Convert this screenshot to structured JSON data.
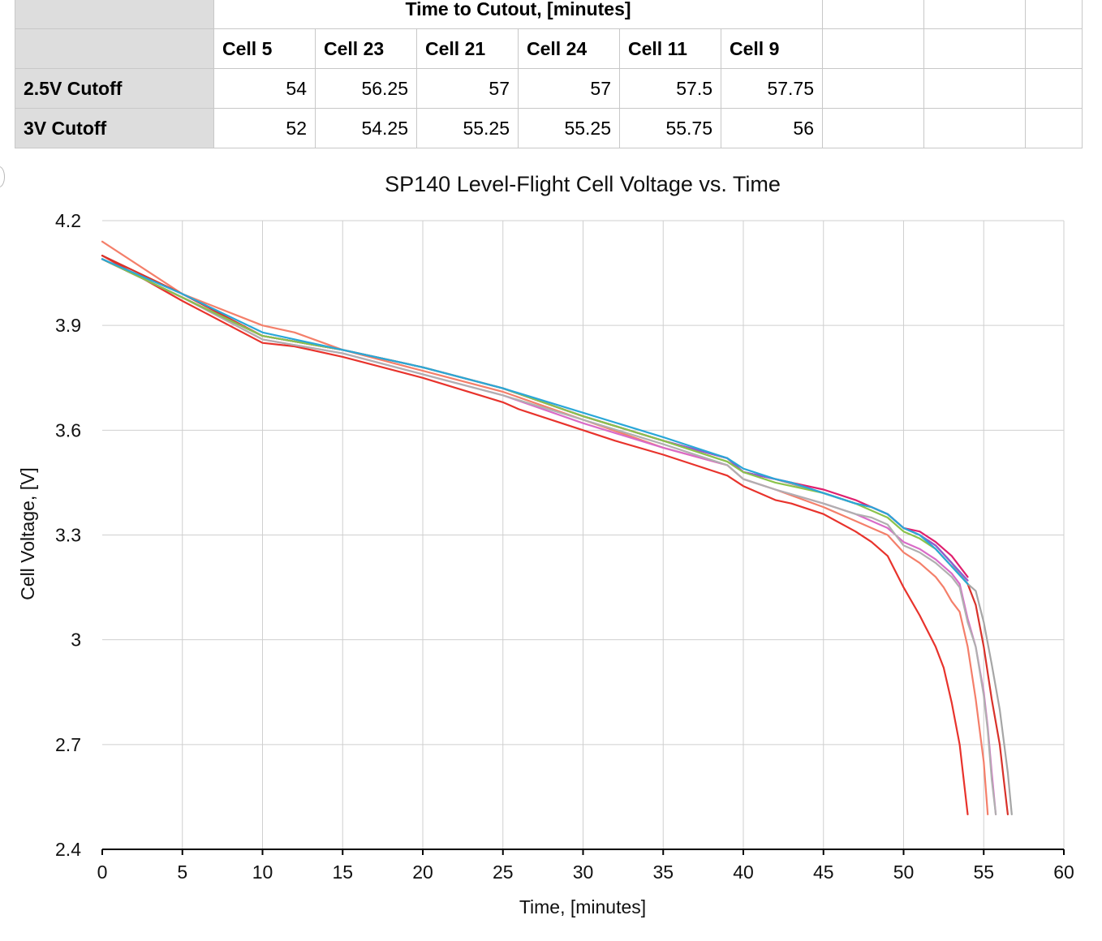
{
  "table": {
    "title": "Time to Cutout, [minutes]",
    "columns": [
      "Cell 5",
      "Cell 23",
      "Cell 21",
      "Cell 24",
      "Cell 11",
      "Cell 9"
    ],
    "rows": [
      {
        "label": "2.5V Cutoff",
        "values": [
          "54",
          "56.25",
          "57",
          "57",
          "57.5",
          "57.75"
        ]
      },
      {
        "label": "3V Cutoff",
        "values": [
          "52",
          "54.25",
          "55.25",
          "55.25",
          "55.75",
          "56"
        ]
      }
    ]
  },
  "chart_data": {
    "type": "line",
    "title": "SP140 Level-Flight Cell Voltage vs. Time",
    "xlabel": "Time, [minutes]",
    "ylabel": "Cell Voltage, [V]",
    "xlim": [
      0,
      60
    ],
    "ylim": [
      2.4,
      4.2
    ],
    "xticks": [
      0,
      5,
      10,
      15,
      20,
      25,
      30,
      35,
      40,
      45,
      50,
      55,
      60
    ],
    "yticks": [
      2.4,
      2.7,
      3.0,
      3.3,
      3.6,
      3.9,
      4.2
    ],
    "ytick_labels": [
      "2.4",
      "2.7",
      "3",
      "3.3",
      "3.6",
      "3.9",
      "4.2"
    ],
    "grid": true,
    "series": [
      {
        "color": "#e8332c",
        "x": [
          0,
          5,
          10,
          12,
          15,
          20,
          25,
          26,
          30,
          32,
          35,
          39,
          40,
          42,
          43,
          45,
          47,
          48,
          49,
          50,
          51,
          52,
          52.5,
          53,
          53.5,
          54
        ],
        "y": [
          4.1,
          3.97,
          3.85,
          3.84,
          3.81,
          3.75,
          3.68,
          3.66,
          3.6,
          3.57,
          3.53,
          3.47,
          3.44,
          3.4,
          3.39,
          3.36,
          3.31,
          3.28,
          3.24,
          3.15,
          3.07,
          2.98,
          2.92,
          2.82,
          2.7,
          2.5
        ]
      },
      {
        "color": "#f47f6a",
        "x": [
          0,
          5,
          10,
          12,
          15,
          20,
          25,
          30,
          35,
          39,
          40,
          42,
          45,
          47,
          48,
          49,
          50,
          51,
          52,
          52.5,
          53,
          53.5,
          54,
          54.5,
          55,
          55.25
        ],
        "y": [
          4.14,
          3.99,
          3.9,
          3.88,
          3.83,
          3.77,
          3.71,
          3.63,
          3.55,
          3.5,
          3.46,
          3.43,
          3.38,
          3.34,
          3.32,
          3.3,
          3.25,
          3.22,
          3.18,
          3.15,
          3.11,
          3.08,
          2.98,
          2.83,
          2.65,
          2.5
        ]
      },
      {
        "color": "#d96bc8",
        "x": [
          0,
          5,
          10,
          15,
          20,
          25,
          30,
          35,
          39,
          40,
          42,
          45,
          47,
          48,
          49,
          50,
          51,
          52,
          53,
          53.5,
          54,
          54.5,
          55,
          55.25,
          55.5,
          55.75
        ],
        "y": [
          4.09,
          3.98,
          3.86,
          3.82,
          3.76,
          3.7,
          3.62,
          3.55,
          3.5,
          3.46,
          3.43,
          3.39,
          3.36,
          3.34,
          3.32,
          3.28,
          3.26,
          3.23,
          3.19,
          3.16,
          3.06,
          2.98,
          2.85,
          2.75,
          2.62,
          2.5
        ]
      },
      {
        "color": "#b0b0b0",
        "x": [
          0,
          5,
          10,
          15,
          20,
          25,
          30,
          35,
          39,
          40,
          42,
          45,
          47,
          48,
          49,
          50,
          51,
          52,
          53,
          53.5,
          54,
          54.5,
          55,
          55.25,
          55.5,
          55.75
        ],
        "y": [
          4.09,
          3.98,
          3.86,
          3.82,
          3.76,
          3.7,
          3.63,
          3.56,
          3.5,
          3.46,
          3.43,
          3.39,
          3.36,
          3.35,
          3.33,
          3.27,
          3.25,
          3.22,
          3.18,
          3.15,
          3.05,
          2.98,
          2.84,
          2.74,
          2.6,
          2.5
        ]
      },
      {
        "color": "#d8322a",
        "x": [
          0,
          5,
          10,
          15,
          20,
          25,
          30,
          35,
          39,
          40,
          42,
          45,
          47,
          48,
          49,
          50,
          51,
          52,
          53,
          54,
          54.5,
          55,
          55.5,
          56,
          56.25,
          56.5
        ],
        "y": [
          4.1,
          3.99,
          3.87,
          3.83,
          3.78,
          3.72,
          3.64,
          3.57,
          3.52,
          3.48,
          3.46,
          3.42,
          3.39,
          3.38,
          3.36,
          3.32,
          3.3,
          3.27,
          3.22,
          3.16,
          3.1,
          2.98,
          2.83,
          2.7,
          2.6,
          2.5
        ]
      },
      {
        "color": "#a6a6a6",
        "x": [
          0,
          5,
          10,
          15,
          20,
          25,
          30,
          35,
          39,
          40,
          42,
          45,
          47,
          48,
          49,
          50,
          51,
          52,
          53,
          54,
          54.5,
          55,
          55.5,
          56,
          56.5,
          56.75
        ],
        "y": [
          4.09,
          3.98,
          3.87,
          3.83,
          3.78,
          3.72,
          3.64,
          3.57,
          3.51,
          3.48,
          3.46,
          3.42,
          3.39,
          3.38,
          3.36,
          3.32,
          3.3,
          3.27,
          3.22,
          3.16,
          3.14,
          3.05,
          2.93,
          2.8,
          2.62,
          2.5
        ]
      },
      {
        "color": "#e0206e",
        "x": [
          0,
          5,
          10,
          15,
          20,
          25,
          30,
          35,
          39,
          40,
          42,
          43,
          45,
          47,
          48,
          49,
          50,
          51,
          52,
          53,
          54
        ],
        "y": [
          4.09,
          3.98,
          3.87,
          3.83,
          3.78,
          3.72,
          3.64,
          3.57,
          3.52,
          3.48,
          3.46,
          3.45,
          3.43,
          3.4,
          3.38,
          3.36,
          3.32,
          3.31,
          3.28,
          3.24,
          3.18
        ]
      },
      {
        "color": "#8e5bd0",
        "x": [
          0,
          5,
          10,
          15,
          20,
          25,
          30,
          35,
          39,
          40,
          42,
          43,
          45,
          47,
          48,
          49,
          50,
          51,
          52,
          53,
          54
        ],
        "y": [
          4.09,
          3.98,
          3.87,
          3.83,
          3.78,
          3.72,
          3.64,
          3.57,
          3.52,
          3.48,
          3.46,
          3.45,
          3.42,
          3.39,
          3.38,
          3.36,
          3.32,
          3.3,
          3.27,
          3.22,
          3.17
        ]
      },
      {
        "color": "#8bc34a",
        "x": [
          0,
          5,
          10,
          15,
          20,
          25,
          30,
          35,
          39,
          40,
          42,
          43,
          45,
          47,
          48,
          49,
          50,
          51,
          52,
          53,
          54
        ],
        "y": [
          4.09,
          3.98,
          3.87,
          3.83,
          3.78,
          3.72,
          3.64,
          3.57,
          3.51,
          3.48,
          3.45,
          3.44,
          3.42,
          3.39,
          3.37,
          3.35,
          3.31,
          3.29,
          3.26,
          3.21,
          3.16
        ]
      },
      {
        "color": "#2aa7d8",
        "x": [
          0,
          5,
          10,
          15,
          20,
          25,
          30,
          35,
          39,
          40,
          42,
          43,
          45,
          47,
          48,
          49,
          50,
          51,
          52,
          53,
          54
        ],
        "y": [
          4.09,
          3.99,
          3.88,
          3.83,
          3.78,
          3.72,
          3.65,
          3.58,
          3.52,
          3.49,
          3.46,
          3.45,
          3.42,
          3.39,
          3.38,
          3.36,
          3.32,
          3.3,
          3.26,
          3.21,
          3.16
        ]
      }
    ]
  }
}
